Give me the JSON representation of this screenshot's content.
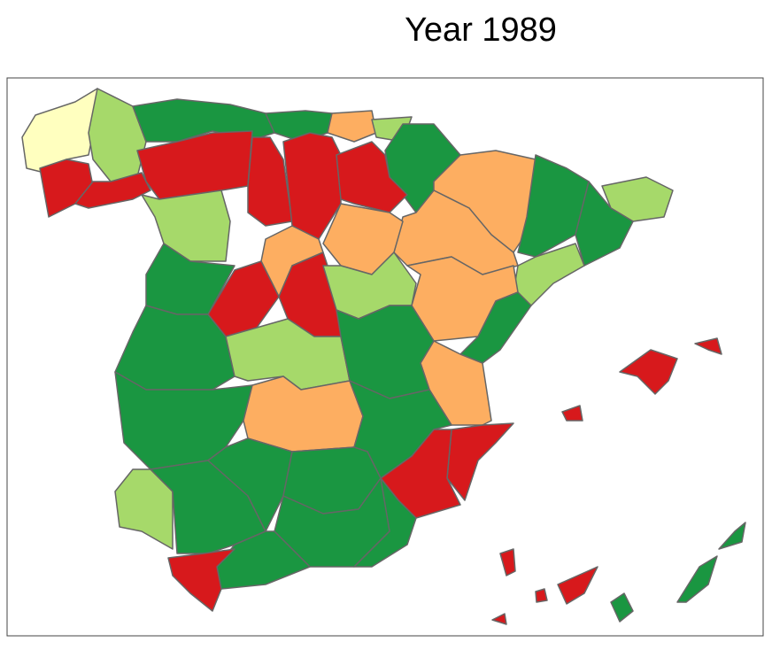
{
  "title": "Year 1989"
}
